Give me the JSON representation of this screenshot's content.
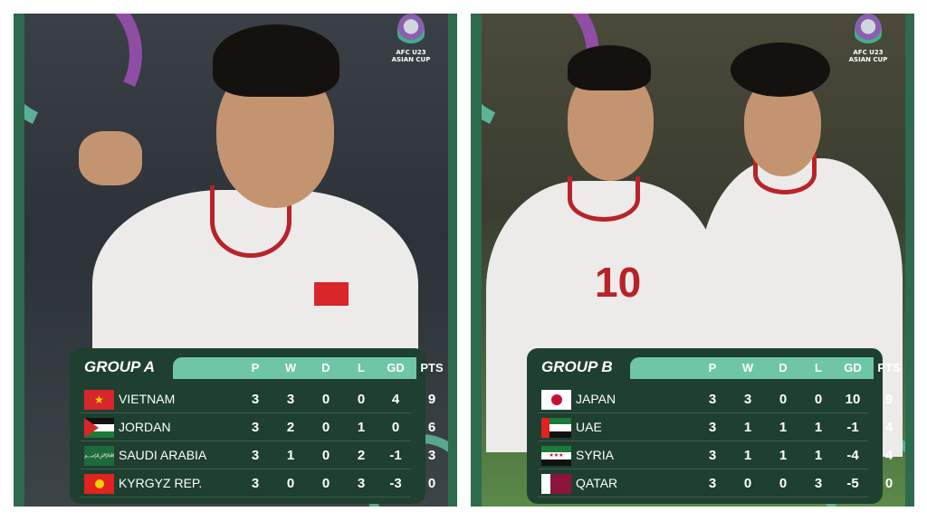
{
  "logo_text": [
    "AFC U23",
    "ASIAN CUP"
  ],
  "columns": [
    "P",
    "W",
    "D",
    "L",
    "GD",
    "PTS"
  ],
  "groups": [
    {
      "name": "GROUP A",
      "rows": [
        {
          "team": "VIETNAM",
          "flag": "vietnam-flag",
          "P": "3",
          "W": "3",
          "D": "0",
          "L": "0",
          "GD": "4",
          "PTS": "9"
        },
        {
          "team": "JORDAN",
          "flag": "jordan-flag",
          "P": "3",
          "W": "2",
          "D": "0",
          "L": "1",
          "GD": "0",
          "PTS": "6"
        },
        {
          "team": "SAUDI ARABIA",
          "flag": "saudi-arabia-flag",
          "P": "3",
          "W": "1",
          "D": "0",
          "L": "2",
          "GD": "-1",
          "PTS": "3"
        },
        {
          "team": "KYRGYZ REP.",
          "flag": "kyrgyzstan-flag",
          "P": "3",
          "W": "0",
          "D": "0",
          "L": "3",
          "GD": "-3",
          "PTS": "0"
        }
      ]
    },
    {
      "name": "GROUP B",
      "rows": [
        {
          "team": "JAPAN",
          "flag": "japan-flag",
          "P": "3",
          "W": "3",
          "D": "0",
          "L": "0",
          "GD": "10",
          "PTS": "9"
        },
        {
          "team": "UAE",
          "flag": "uae-flag",
          "P": "3",
          "W": "1",
          "D": "1",
          "L": "1",
          "GD": "-1",
          "PTS": "4"
        },
        {
          "team": "SYRIA",
          "flag": "syria-flag",
          "P": "3",
          "W": "1",
          "D": "1",
          "L": "1",
          "GD": "-4",
          "PTS": "4"
        },
        {
          "team": "QATAR",
          "flag": "qatar-flag",
          "P": "3",
          "W": "0",
          "D": "0",
          "L": "3",
          "GD": "-5",
          "PTS": "0"
        }
      ]
    }
  ],
  "shirt_number": "10",
  "colors": {
    "panel_border": "#2e6a4e",
    "table_bg": "#1f3f30",
    "header_bar": "#6ec6a6",
    "accent_purple": "#9a4fb0"
  }
}
